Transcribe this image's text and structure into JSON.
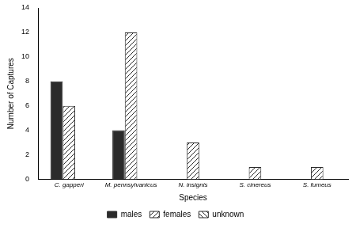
{
  "chart_data": {
    "type": "bar",
    "x_label": "Species",
    "y_label": "Number of Captures",
    "categories": [
      "C. gapperi",
      "M. pennsylvanicus",
      "N. insignis",
      "S. cinereus",
      "S. fumeus"
    ],
    "series": [
      {
        "name": "males",
        "color": "#2b2b2b",
        "values": [
          8,
          4,
          null,
          null,
          null
        ]
      },
      {
        "name": "females",
        "color": "#2b2b2b",
        "values": [
          6,
          12,
          3,
          1,
          1
        ]
      },
      {
        "name": "unknown",
        "color": "#2b2b2b",
        "values": [
          null,
          null,
          null,
          null,
          null
        ]
      }
    ],
    "ylim": [
      0,
      14
    ],
    "yticks": [
      0,
      2,
      4,
      6,
      8,
      10,
      12,
      14
    ],
    "grid": false,
    "legend": "bottom"
  }
}
